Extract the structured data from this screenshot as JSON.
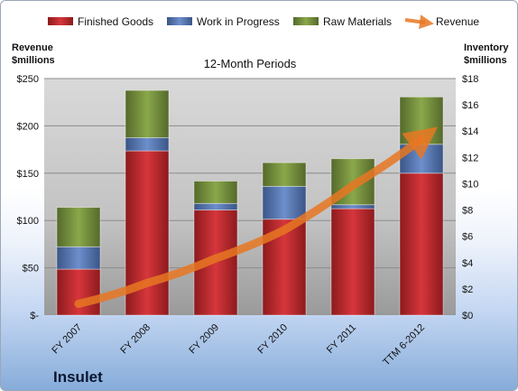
{
  "chart_data": {
    "type": "bar",
    "title": "12-Month Periods",
    "categories": [
      "FY 2007",
      "FY 2008",
      "FY 2009",
      "FY 2010",
      "FY 2011",
      "TTM 6-2012"
    ],
    "stacked": true,
    "series": [
      {
        "name": "Finished Goods",
        "axis": "right",
        "color": "#c0282d",
        "values": [
          3.5,
          12.5,
          8.0,
          7.3,
          8.1,
          10.8
        ]
      },
      {
        "name": "Work in Progress",
        "axis": "right",
        "color": "#5878b4",
        "values": [
          1.7,
          1.0,
          0.5,
          2.5,
          0.3,
          2.2
        ]
      },
      {
        "name": "Raw Materials",
        "axis": "right",
        "color": "#76923c",
        "values": [
          3.0,
          3.6,
          1.7,
          1.8,
          3.5,
          3.6
        ]
      },
      {
        "name": "Revenue",
        "axis": "left",
        "type": "line",
        "color": "#e87722",
        "values": [
          12,
          34,
          60,
          90,
          137,
          186
        ]
      }
    ],
    "ylabel_left": "Revenue\n$millions",
    "ylabel_right": "Inventory\n$millions",
    "ylim_left": [
      0,
      250
    ],
    "ylim_right": [
      0,
      18
    ],
    "yticks_left": [
      "$-",
      "$50",
      "$100",
      "$150",
      "$200",
      "$250"
    ],
    "yticks_right": [
      "$0",
      "$2",
      "$4",
      "$6",
      "$8",
      "$10",
      "$12",
      "$14",
      "$16",
      "$18"
    ],
    "grid": true,
    "legend_position": "top",
    "company": "Insulet"
  }
}
